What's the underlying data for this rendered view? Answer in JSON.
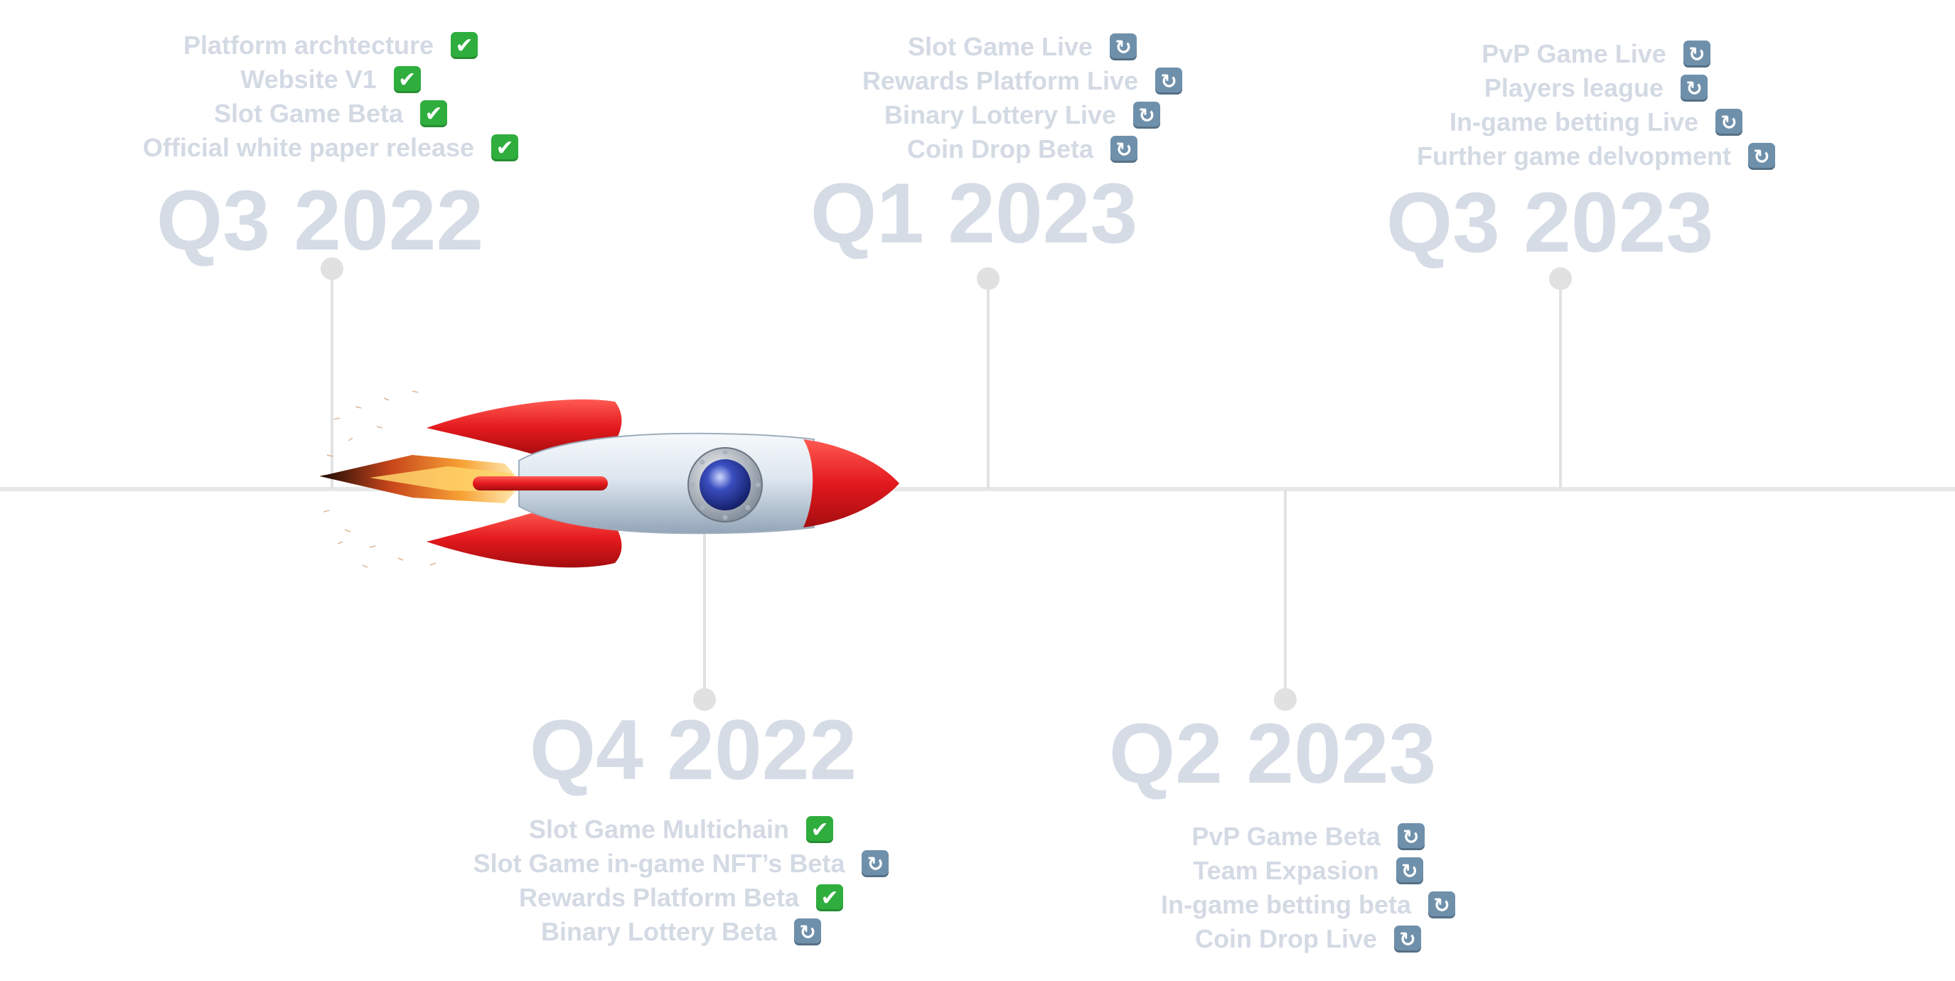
{
  "status_icons": {
    "done": "white-check-mark-icon",
    "in_progress": "refresh-arrows-icon"
  },
  "colors": {
    "rocket_red": "#e3191d",
    "rocket_body": "#dfe7f0",
    "flame": "#f58a1e",
    "quarter_text": "#d6dce6"
  },
  "milestones": [
    {
      "quarter": "Q3 2022",
      "items": [
        {
          "label": "Platform archtecture",
          "status": "done"
        },
        {
          "label": "Website V1",
          "status": "done"
        },
        {
          "label": "Slot Game Beta",
          "status": "done"
        },
        {
          "label": "Official white paper release",
          "status": "done"
        }
      ]
    },
    {
      "quarter": "Q4 2022",
      "items": [
        {
          "label": "Slot Game Multichain",
          "status": "done"
        },
        {
          "label": "Slot Game in-game NFT’s Beta",
          "status": "in_progress"
        },
        {
          "label": "Rewards Platform Beta",
          "status": "done"
        },
        {
          "label": "Binary Lottery Beta",
          "status": "in_progress"
        }
      ]
    },
    {
      "quarter": "Q1 2023",
      "items": [
        {
          "label": "Slot Game Live",
          "status": "in_progress"
        },
        {
          "label": "Rewards Platform Live",
          "status": "in_progress"
        },
        {
          "label": "Binary Lottery Live",
          "status": "in_progress"
        },
        {
          "label": "Coin Drop Beta",
          "status": "in_progress"
        }
      ]
    },
    {
      "quarter": "Q2 2023",
      "items": [
        {
          "label": "PvP Game Beta",
          "status": "in_progress"
        },
        {
          "label": "Team Expasion",
          "status": "in_progress"
        },
        {
          "label": "In-game betting beta",
          "status": "in_progress"
        },
        {
          "label": "Coin Drop Live",
          "status": "in_progress"
        }
      ]
    },
    {
      "quarter": "Q3 2023",
      "items": [
        {
          "label": "PvP Game Live",
          "status": "in_progress"
        },
        {
          "label": "Players league",
          "status": "in_progress"
        },
        {
          "label": "In-game betting Live",
          "status": "in_progress"
        },
        {
          "label": "Further game delvopment",
          "status": "in_progress"
        }
      ]
    }
  ]
}
